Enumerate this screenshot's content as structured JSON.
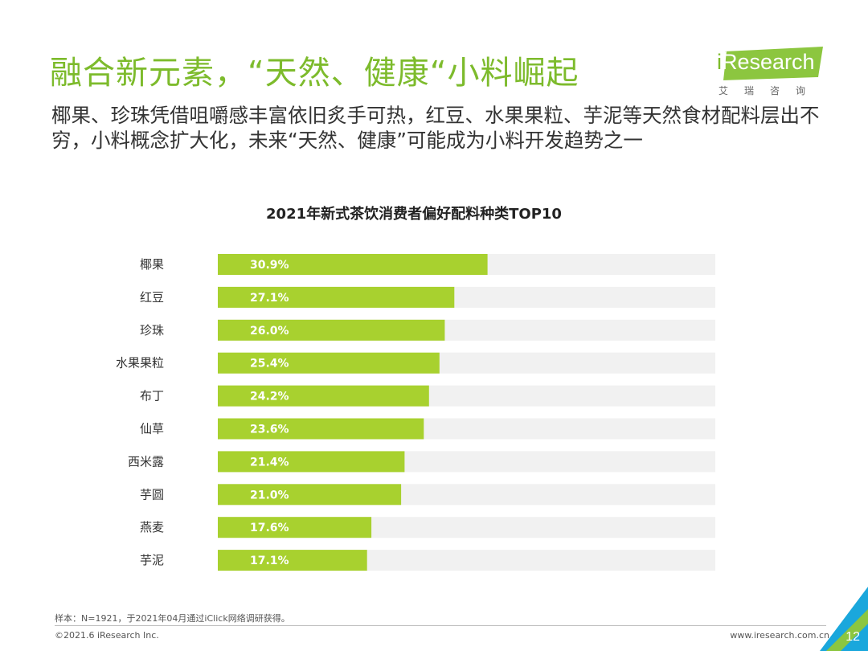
{
  "header": {
    "title": "融合新元素，“天然、健康“小料崛起",
    "subtitle": "椰果、珍珠凭借咀嚼感丰富依旧炙手可热，红豆、水果果粒、芋泥等天然食材配料层出不穷，小料概念扩大化，未来“天然、健康”可能成为小料开发趋势之一"
  },
  "logo": {
    "prefix": "i",
    "name": "Research",
    "sub": "艾瑞咨询"
  },
  "chart_data": {
    "type": "bar",
    "orientation": "horizontal",
    "title": "2021年新式茶饮消费者偏好配料种类TOP10",
    "categories": [
      "椰果",
      "红豆",
      "珍珠",
      "水果果粒",
      "布丁",
      "仙草",
      "西米露",
      "芋圆",
      "燕麦",
      "芋泥"
    ],
    "values": [
      30.9,
      27.1,
      26.0,
      25.4,
      24.2,
      23.6,
      21.4,
      21.0,
      17.6,
      17.1
    ],
    "value_labels": [
      "30.9%",
      "27.1%",
      "26.0%",
      "25.4%",
      "24.2%",
      "23.6%",
      "21.4%",
      "21.0%",
      "17.6%",
      "17.1%"
    ],
    "xlim": [
      0,
      57
    ],
    "bar_color": "#a8d12f",
    "track_color": "#f1f1f1",
    "grid": false
  },
  "footer": {
    "note": "样本：N=1921，于2021年04月通过iClick网络调研获得。",
    "copyright": "©2021.6 iResearch Inc.",
    "website": "www.iresearch.com.cn",
    "page": "12"
  },
  "colors": {
    "brand_green": "#7dbb2c",
    "accent_blue": "#1aa7dc"
  }
}
